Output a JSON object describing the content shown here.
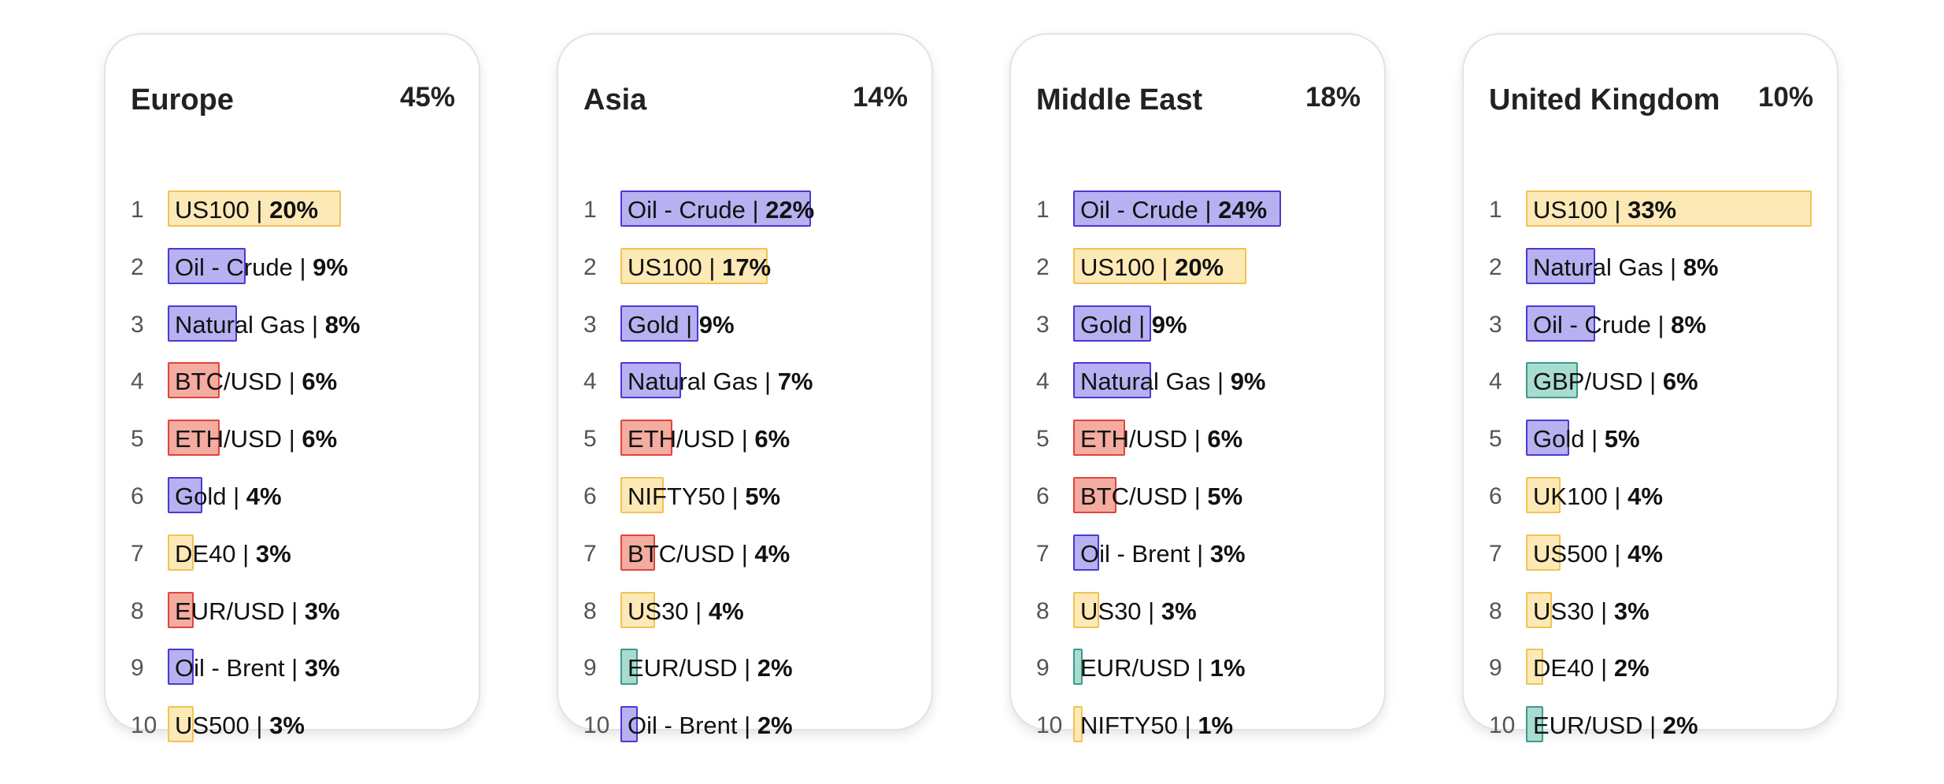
{
  "chart_data": [
    {
      "type": "bar",
      "title": "Europe",
      "share": "45%",
      "max_value": 33,
      "items": [
        {
          "rank": "1",
          "name": "US100",
          "value": 20,
          "label": "20%",
          "color": "yellow"
        },
        {
          "rank": "2",
          "name": "Oil - Crude",
          "value": 9,
          "label": "9%",
          "color": "purple"
        },
        {
          "rank": "3",
          "name": "Natural Gas",
          "value": 8,
          "label": "8%",
          "color": "purple"
        },
        {
          "rank": "4",
          "name": "BTC/USD",
          "value": 6,
          "label": "6%",
          "color": "red"
        },
        {
          "rank": "5",
          "name": "ETH/USD",
          "value": 6,
          "label": "6%",
          "color": "red"
        },
        {
          "rank": "6",
          "name": "Gold",
          "value": 4,
          "label": "4%",
          "color": "purple"
        },
        {
          "rank": "7",
          "name": "DE40",
          "value": 3,
          "label": "3%",
          "color": "yellow"
        },
        {
          "rank": "8",
          "name": "EUR/USD",
          "value": 3,
          "label": "3%",
          "color": "red"
        },
        {
          "rank": "9",
          "name": "Oil - Brent",
          "value": 3,
          "label": "3%",
          "color": "purple"
        },
        {
          "rank": "10",
          "name": "US500",
          "value": 3,
          "label": "3%",
          "color": "yellow"
        }
      ]
    },
    {
      "type": "bar",
      "title": "Asia",
      "share": "14%",
      "max_value": 33,
      "items": [
        {
          "rank": "1",
          "name": "Oil - Crude",
          "value": 22,
          "label": "22%",
          "color": "purple"
        },
        {
          "rank": "2",
          "name": "US100",
          "value": 17,
          "label": "17%",
          "color": "yellow"
        },
        {
          "rank": "3",
          "name": "Gold",
          "value": 9,
          "label": "9%",
          "color": "purple"
        },
        {
          "rank": "4",
          "name": "Natural Gas",
          "value": 7,
          "label": "7%",
          "color": "purple"
        },
        {
          "rank": "5",
          "name": "ETH/USD",
          "value": 6,
          "label": "6%",
          "color": "red"
        },
        {
          "rank": "6",
          "name": "NIFTY50",
          "value": 5,
          "label": "5%",
          "color": "yellow"
        },
        {
          "rank": "7",
          "name": "BTC/USD",
          "value": 4,
          "label": "4%",
          "color": "red"
        },
        {
          "rank": "8",
          "name": "US30",
          "value": 4,
          "label": "4%",
          "color": "yellow"
        },
        {
          "rank": "9",
          "name": "EUR/USD",
          "value": 2,
          "label": "2%",
          "color": "teal"
        },
        {
          "rank": "10",
          "name": "Oil - Brent",
          "value": 2,
          "label": "2%",
          "color": "purple"
        }
      ]
    },
    {
      "type": "bar",
      "title": "Middle East",
      "share": "18%",
      "max_value": 33,
      "items": [
        {
          "rank": "1",
          "name": "Oil - Crude",
          "value": 24,
          "label": "24%",
          "color": "purple"
        },
        {
          "rank": "2",
          "name": "US100",
          "value": 20,
          "label": "20%",
          "color": "yellow"
        },
        {
          "rank": "3",
          "name": "Gold",
          "value": 9,
          "label": "9%",
          "color": "purple"
        },
        {
          "rank": "4",
          "name": "Natural Gas",
          "value": 9,
          "label": "9%",
          "color": "purple"
        },
        {
          "rank": "5",
          "name": "ETH/USD",
          "value": 6,
          "label": "6%",
          "color": "red"
        },
        {
          "rank": "6",
          "name": "BTC/USD",
          "value": 5,
          "label": "5%",
          "color": "red"
        },
        {
          "rank": "7",
          "name": "Oil - Brent",
          "value": 3,
          "label": "3%",
          "color": "purple"
        },
        {
          "rank": "8",
          "name": "US30",
          "value": 3,
          "label": "3%",
          "color": "yellow"
        },
        {
          "rank": "9",
          "name": "EUR/USD",
          "value": 1,
          "label": "1%",
          "color": "teal"
        },
        {
          "rank": "10",
          "name": "NIFTY50",
          "value": 1,
          "label": "1%",
          "color": "yellow"
        }
      ]
    },
    {
      "type": "bar",
      "title": "United Kingdom",
      "share": "10%",
      "max_value": 33,
      "items": [
        {
          "rank": "1",
          "name": "US100",
          "value": 33,
          "label": "33%",
          "color": "yellow"
        },
        {
          "rank": "2",
          "name": "Natural Gas",
          "value": 8,
          "label": "8%",
          "color": "purple"
        },
        {
          "rank": "3",
          "name": "Oil - Crude",
          "value": 8,
          "label": "8%",
          "color": "purple"
        },
        {
          "rank": "4",
          "name": "GBP/USD",
          "value": 6,
          "label": "6%",
          "color": "teal"
        },
        {
          "rank": "5",
          "name": "Gold",
          "value": 5,
          "label": "5%",
          "color": "purple"
        },
        {
          "rank": "6",
          "name": "UK100",
          "value": 4,
          "label": "4%",
          "color": "yellow"
        },
        {
          "rank": "7",
          "name": "US500",
          "value": 4,
          "label": "4%",
          "color": "yellow"
        },
        {
          "rank": "8",
          "name": "US30",
          "value": 3,
          "label": "3%",
          "color": "yellow"
        },
        {
          "rank": "9",
          "name": "DE40",
          "value": 2,
          "label": "2%",
          "color": "yellow"
        },
        {
          "rank": "10",
          "name": "EUR/USD",
          "value": 2,
          "label": "2%",
          "color": "teal"
        }
      ]
    }
  ]
}
